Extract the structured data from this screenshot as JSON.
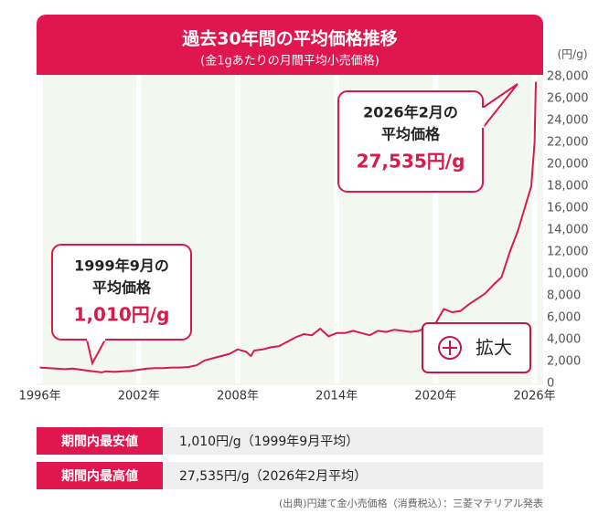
{
  "chart_data": {
    "type": "line",
    "title": "過去30年間の平均価格推移",
    "subtitle": "(金1gあたりの月間平均小売価格)",
    "y_unit_label": "(円/g)",
    "color": "#d91a4c",
    "grid": true,
    "x": [
      1996.0,
      1996.5,
      1997.0,
      1997.5,
      1998.0,
      1998.5,
      1999.0,
      1999.75,
      2000.0,
      2000.5,
      2001.0,
      2001.5,
      2002.0,
      2002.5,
      2003.0,
      2003.5,
      2004.0,
      2004.5,
      2005.0,
      2005.5,
      2006.0,
      2006.5,
      2007.0,
      2007.5,
      2008.0,
      2008.5,
      2008.8,
      2009.0,
      2009.5,
      2010.0,
      2010.5,
      2011.0,
      2011.5,
      2012.0,
      2012.5,
      2013.0,
      2013.5,
      2014.0,
      2014.5,
      2015.0,
      2015.5,
      2016.0,
      2016.5,
      2017.0,
      2017.5,
      2018.0,
      2018.5,
      2019.0,
      2019.5,
      2020.0,
      2020.5,
      2021.0,
      2021.5,
      2022.0,
      2022.5,
      2023.0,
      2023.5,
      2024.0,
      2024.5,
      2025.0,
      2025.5,
      2025.8,
      2026.0,
      2026.08
    ],
    "values": [
      1450,
      1400,
      1350,
      1300,
      1350,
      1250,
      1150,
      1010,
      1100,
      1050,
      1100,
      1150,
      1250,
      1350,
      1400,
      1400,
      1450,
      1450,
      1500,
      1650,
      2100,
      2300,
      2500,
      2700,
      3100,
      2900,
      2500,
      3000,
      3100,
      3300,
      3400,
      3800,
      4200,
      4500,
      4400,
      5000,
      4300,
      4600,
      4600,
      4800,
      4600,
      4400,
      4800,
      4700,
      4900,
      4800,
      4700,
      4800,
      5200,
      5500,
      6800,
      6500,
      6600,
      7200,
      7700,
      8200,
      9000,
      9700,
      12000,
      14000,
      16500,
      18000,
      22000,
      27535
    ],
    "xlim": [
      1995.8,
      2026.3
    ],
    "xticks": [
      {
        "value": 1996,
        "label": "1996年"
      },
      {
        "value": 2002,
        "label": "2002年"
      },
      {
        "value": 2008,
        "label": "2008年"
      },
      {
        "value": 2014,
        "label": "2014年"
      },
      {
        "value": 2020,
        "label": "2020年"
      },
      {
        "value": 2026,
        "label": "2026年"
      }
    ],
    "ylim": [
      0,
      28000
    ],
    "yticks": [
      0,
      {
        "value": 2000,
        "label": "2,000"
      },
      {
        "value": 4000,
        "label": "4,000"
      },
      {
        "value": 6000,
        "label": "6,000"
      },
      {
        "value": 8000,
        "label": "8,000"
      },
      {
        "value": 10000,
        "label": "10,000"
      },
      {
        "value": 12000,
        "label": "12,000"
      },
      {
        "value": 14000,
        "label": "14,000"
      },
      {
        "value": 16000,
        "label": "16,000"
      },
      {
        "value": 18000,
        "label": "18,000"
      },
      {
        "value": 20000,
        "label": "20,000"
      },
      {
        "value": 22000,
        "label": "22,000"
      },
      {
        "value": 24000,
        "label": "24,000"
      },
      {
        "value": 26000,
        "label": "26,000"
      },
      {
        "value": 28000,
        "label": "28,000"
      }
    ],
    "annotations": [
      {
        "lines": [
          "1999年9月の",
          "平均価格"
        ],
        "label": "1,010円/g"
      },
      {
        "lines": [
          "2026年2月の",
          "平均価格"
        ],
        "label": "27,535円/g"
      }
    ],
    "zoom_button": "拡大",
    "table": {
      "rows": [
        [
          "期間内最安値",
          "1,010円/g（1999年9月平均）"
        ],
        [
          "期間内最高値",
          "27,535円/g（2026年2月平均）"
        ]
      ]
    },
    "source": "(出典)円建て金小売価格（消費税込）：三菱マテリアル発表"
  }
}
